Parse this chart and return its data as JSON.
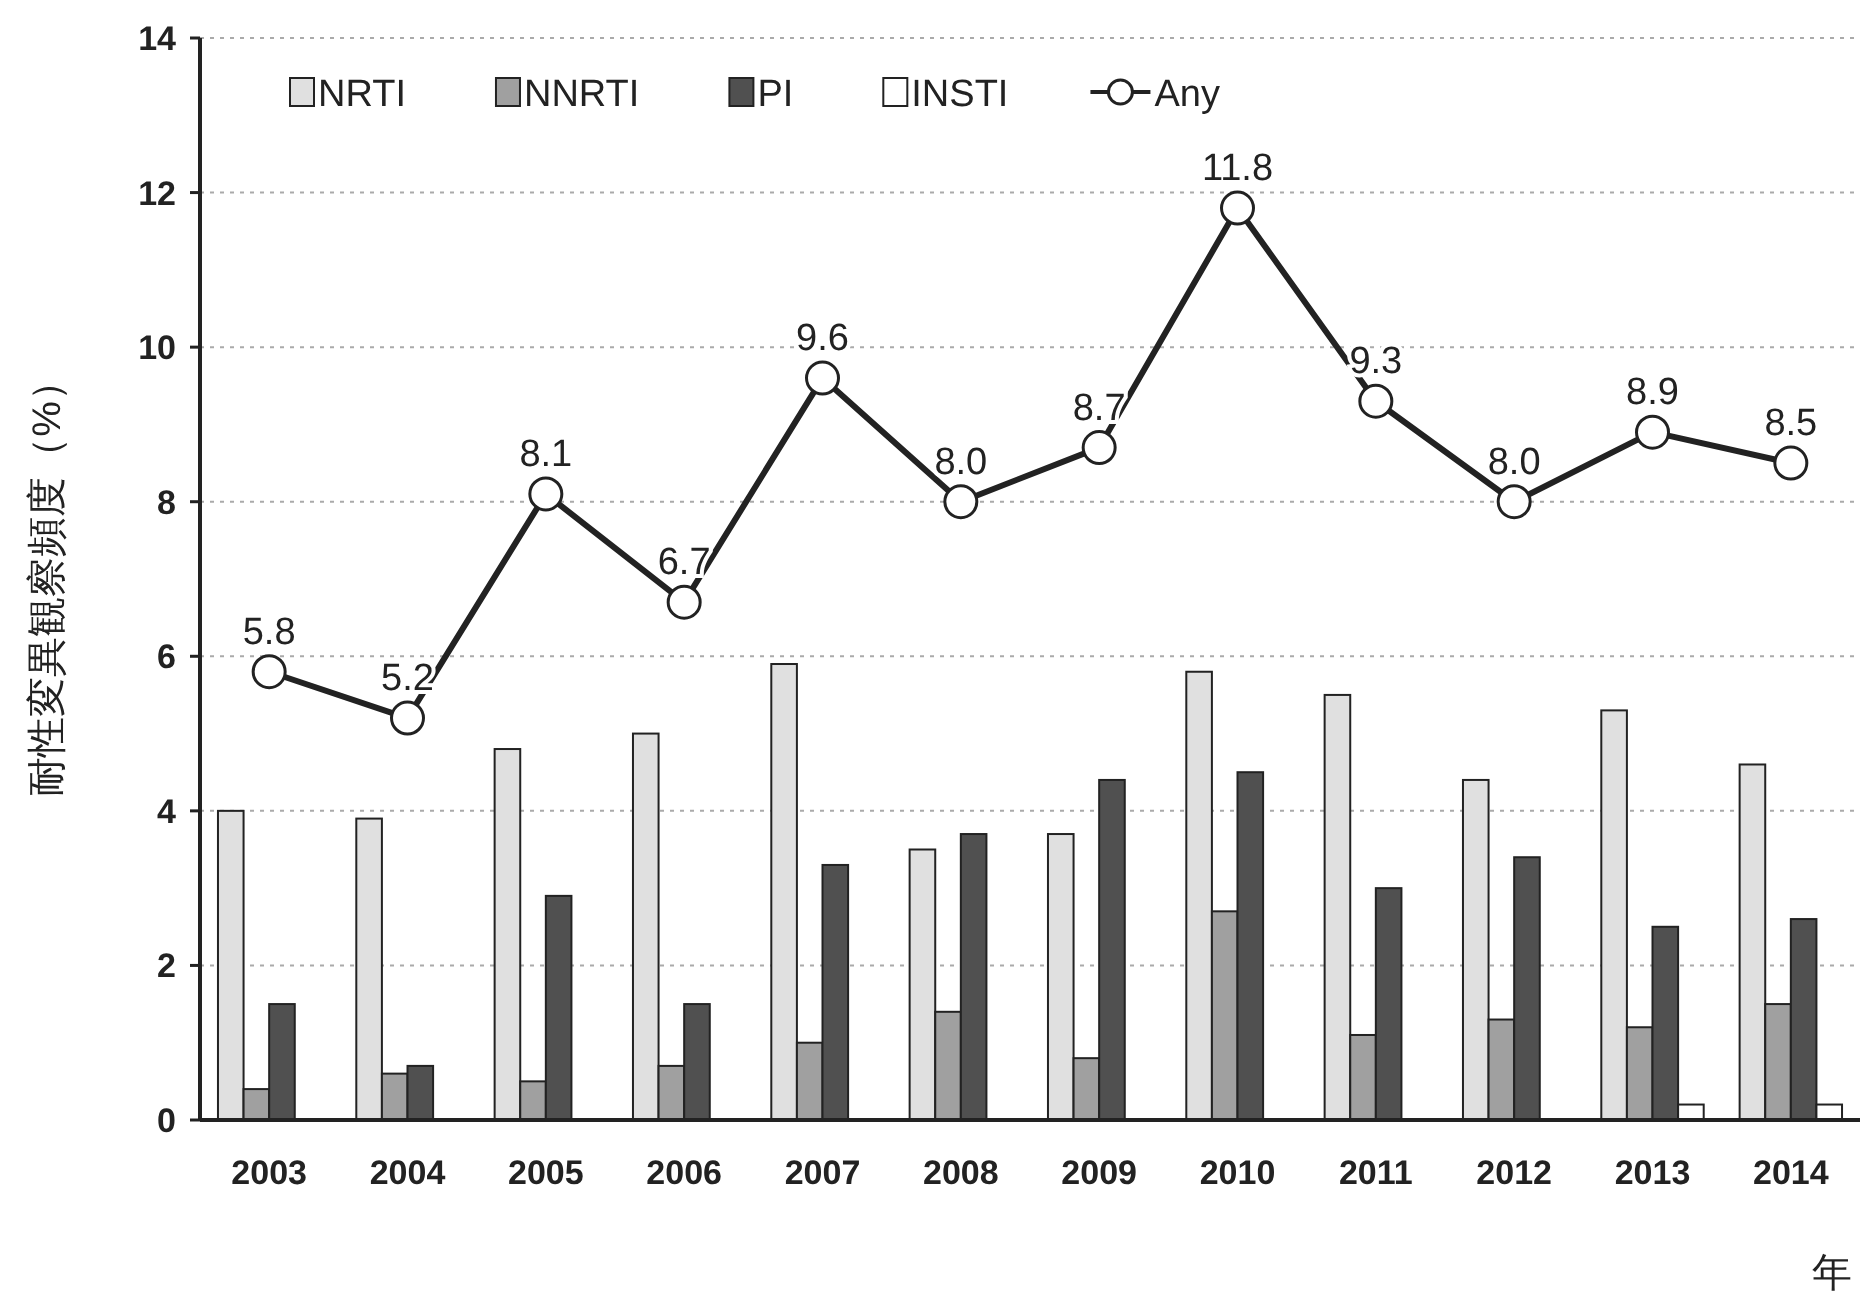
{
  "chart_data": {
    "type": "bar",
    "xlabel": "年",
    "ylabel": "耐性変異観察頻度（%）",
    "categories": [
      "2003",
      "2004",
      "2005",
      "2006",
      "2007",
      "2008",
      "2009",
      "2010",
      "2011",
      "2012",
      "2013",
      "2014"
    ],
    "series": [
      {
        "name": "NRTI",
        "color": "#e0e0e0",
        "values": [
          4.0,
          3.9,
          4.8,
          5.0,
          5.9,
          3.5,
          3.7,
          5.8,
          5.5,
          4.4,
          5.3,
          4.6
        ]
      },
      {
        "name": "NNRTI",
        "color": "#a0a0a0",
        "values": [
          0.4,
          0.6,
          0.5,
          0.7,
          1.0,
          1.4,
          0.8,
          2.7,
          1.1,
          1.3,
          1.2,
          1.5
        ]
      },
      {
        "name": "PI",
        "color": "#505050",
        "values": [
          1.5,
          0.7,
          2.9,
          1.5,
          3.3,
          3.7,
          4.4,
          4.5,
          3.0,
          3.4,
          2.5,
          2.6
        ]
      },
      {
        "name": "INSTI",
        "color": "#ffffff",
        "values": [
          null,
          null,
          null,
          null,
          null,
          null,
          null,
          null,
          null,
          null,
          0.2,
          0.2
        ]
      },
      {
        "name": "Any",
        "type": "line",
        "color": "#222222",
        "marker": "circle",
        "values": [
          5.8,
          5.2,
          8.1,
          6.7,
          9.6,
          8.0,
          8.7,
          11.8,
          9.3,
          8.0,
          8.9,
          8.5
        ],
        "value_labels": [
          "5.8",
          "5.2",
          "8.1",
          "6.7",
          "9.6",
          "8.0",
          "8.7",
          "11.8",
          "9.3",
          "8.0",
          "8.9",
          "8.5"
        ]
      }
    ],
    "ylim": [
      0,
      14
    ],
    "yticks": [
      0,
      2,
      4,
      6,
      8,
      10,
      12,
      14
    ],
    "grid": "y",
    "legend": "top left"
  }
}
